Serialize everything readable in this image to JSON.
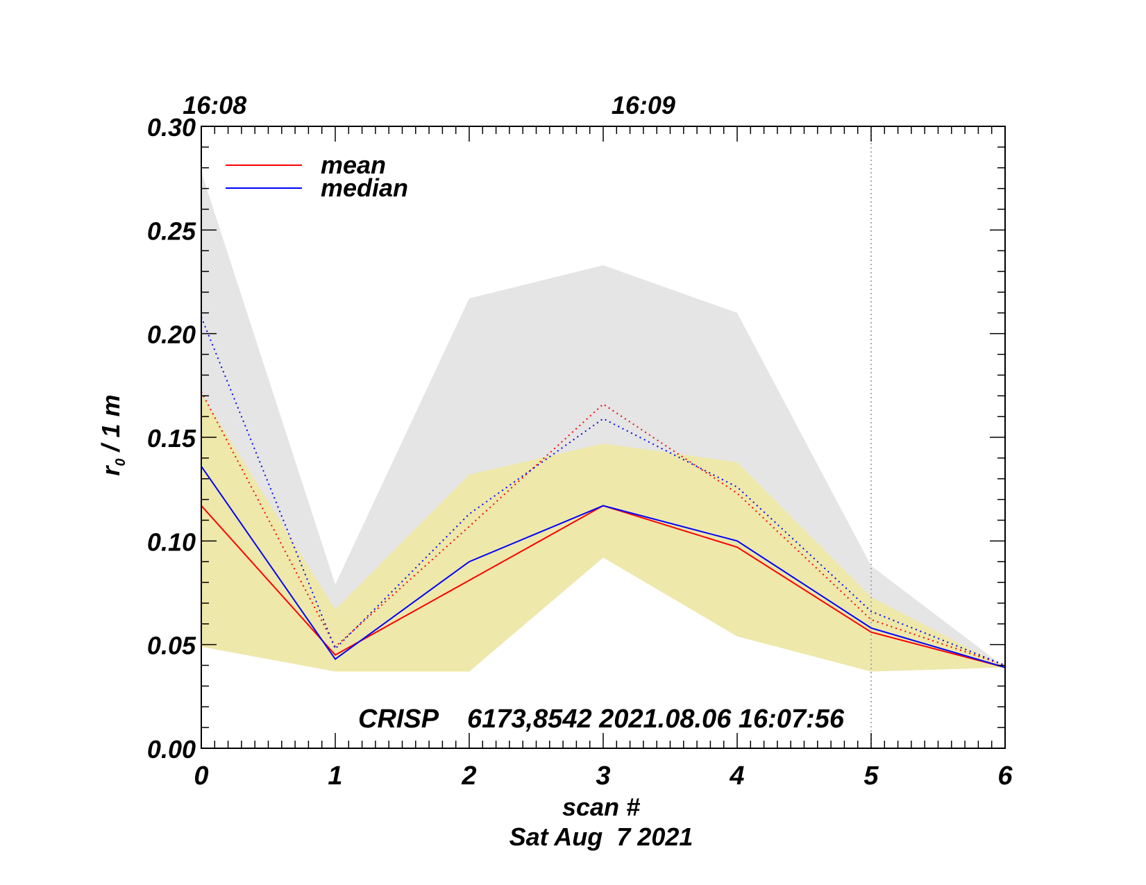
{
  "chart_data": {
    "type": "line",
    "title": "",
    "xlabel": "scan #",
    "date_label": "Sat Aug  7 2021",
    "ylabel_main": "r",
    "ylabel_sub": "0",
    "ylabel_rest": " / 1 m",
    "annotation": "CRISP    6173,8542 2021.08.06 16:07:56",
    "xlim": [
      0,
      6
    ],
    "ylim": [
      0,
      0.3
    ],
    "x_ticks": [
      "0",
      "1",
      "2",
      "3",
      "4",
      "5",
      "6"
    ],
    "y_ticks": [
      "0.00",
      "0.05",
      "0.10",
      "0.15",
      "0.20",
      "0.25",
      "0.30"
    ],
    "top_ticks": [
      {
        "label": "16:08",
        "x": 0.1
      },
      {
        "label": "16:09",
        "x": 3.3
      }
    ],
    "vertical_marker_x": 5,
    "x": [
      0,
      1,
      2,
      3,
      4,
      5,
      6
    ],
    "bands": [
      {
        "name": "full range",
        "color": "#e5e5e5",
        "upper": [
          0.278,
          0.079,
          0.217,
          0.233,
          0.21,
          0.088,
          0.039
        ],
        "lower": [
          0.049,
          0.037,
          0.037,
          0.092,
          0.054,
          0.037,
          0.039
        ]
      },
      {
        "name": "inner range",
        "color": "#eee8aa",
        "upper": [
          0.171,
          0.067,
          0.132,
          0.147,
          0.138,
          0.073,
          0.039
        ],
        "lower": [
          0.049,
          0.037,
          0.037,
          0.092,
          0.054,
          0.037,
          0.039
        ]
      }
    ],
    "series": [
      {
        "name": "mean",
        "color": "#ff0000",
        "style": "solid",
        "values": [
          0.117,
          0.045,
          0.081,
          0.117,
          0.097,
          0.056,
          0.039
        ]
      },
      {
        "name": "median",
        "color": "#0000ff",
        "style": "solid",
        "values": [
          0.136,
          0.043,
          0.09,
          0.117,
          0.1,
          0.058,
          0.039
        ]
      },
      {
        "name": "mean (dotted)",
        "color": "#ff0000",
        "style": "dotted",
        "values": [
          0.172,
          0.049,
          0.107,
          0.166,
          0.123,
          0.062,
          0.04
        ]
      },
      {
        "name": "median (dotted)",
        "color": "#0000ff",
        "style": "dotted",
        "values": [
          0.208,
          0.048,
          0.113,
          0.159,
          0.126,
          0.066,
          0.04
        ]
      }
    ],
    "legend": [
      {
        "label": "mean",
        "color": "#ff0000"
      },
      {
        "label": "median",
        "color": "#0000ff"
      }
    ],
    "legend_position": "top-left"
  }
}
